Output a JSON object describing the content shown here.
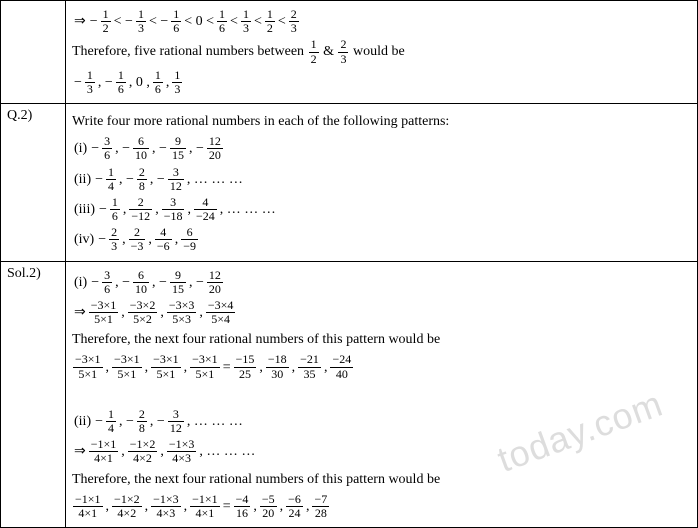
{
  "row1": {
    "label": "",
    "line1_parts": [
      "⇒",
      " − ",
      "1",
      "2",
      " < − ",
      "1",
      "3",
      " < − ",
      "1",
      "6",
      " < 0 < ",
      "1",
      "6",
      " < ",
      "1",
      "3",
      " < ",
      "1",
      "2",
      " < ",
      "2",
      "3"
    ],
    "line2_pre": "Therefore, five rational numbers between ",
    "line2_f1": {
      "n": "1",
      "d": "2"
    },
    "line2_amp": " & ",
    "line2_f2": {
      "n": "2",
      "d": "3"
    },
    "line2_post": " would be",
    "line3_parts": [
      "− ",
      "1",
      "3",
      " , − ",
      "1",
      "6",
      " , 0 , ",
      "1",
      "6",
      " , ",
      "1",
      "3"
    ]
  },
  "row2": {
    "label": "Q.2)",
    "intro": "Write four more rational numbers in each of the following patterns:",
    "i_label": "(i) ",
    "i": [
      {
        "n": "3",
        "d": "6"
      },
      {
        "n": "6",
        "d": "10"
      },
      {
        "n": "9",
        "d": "15"
      },
      {
        "n": "12",
        "d": "20"
      }
    ],
    "ii_label": "(ii) ",
    "ii": [
      {
        "n": "1",
        "d": "4"
      },
      {
        "n": "2",
        "d": "8"
      },
      {
        "n": "3",
        "d": "12"
      }
    ],
    "ii_dots": " , … … …",
    "iii_label": "(iii) ",
    "iii": [
      {
        "n": "1",
        "d": "6"
      },
      {
        "n": "2",
        "d": "−12"
      },
      {
        "n": "3",
        "d": "−18"
      },
      {
        "n": "4",
        "d": "−24"
      }
    ],
    "iii_dots": " , … … …",
    "iv_label": "(iv) ",
    "iv": [
      {
        "n": "2",
        "d": "3"
      },
      {
        "n": "2",
        "d": "−3"
      },
      {
        "n": "4",
        "d": "−6"
      },
      {
        "n": "6",
        "d": "−9"
      }
    ]
  },
  "row3": {
    "label": "Sol.2)",
    "i_label": "(i) ",
    "i_start": [
      {
        "n": "3",
        "d": "6"
      },
      {
        "n": "6",
        "d": "10"
      },
      {
        "n": "9",
        "d": "15"
      },
      {
        "n": "12",
        "d": "20"
      }
    ],
    "i_arrow": "⇒",
    "i_exp": [
      {
        "n": "−3×1",
        "d": "5×1"
      },
      {
        "n": "−3×2",
        "d": "5×2"
      },
      {
        "n": "−3×3",
        "d": "5×3"
      },
      {
        "n": "−3×4",
        "d": "5×4"
      }
    ],
    "i_text": "Therefore, the next four rational numbers of this pattern would be",
    "i_next": [
      {
        "n": "−3×1",
        "d": "5×1"
      },
      {
        "n": "−3×1",
        "d": "5×1"
      },
      {
        "n": "−3×1",
        "d": "5×1"
      },
      {
        "n": "−3×1",
        "d": "5×1"
      }
    ],
    "i_eq": " = ",
    "i_result": [
      {
        "n": "−15",
        "d": "25"
      },
      {
        "n": "−18",
        "d": "30"
      },
      {
        "n": "−21",
        "d": "35"
      },
      {
        "n": "−24",
        "d": "40"
      }
    ],
    "ii_label": "(ii) ",
    "ii_start": [
      {
        "n": "1",
        "d": "4"
      },
      {
        "n": "2",
        "d": "8"
      },
      {
        "n": "3",
        "d": "12"
      }
    ],
    "ii_dots": " , … … …",
    "ii_arrow": "⇒",
    "ii_exp": [
      {
        "n": "−1×1",
        "d": "4×1"
      },
      {
        "n": "−1×2",
        "d": "4×2"
      },
      {
        "n": "−1×3",
        "d": "4×3"
      }
    ],
    "ii_exp_dots": " , … … …",
    "ii_text": "Therefore, the next four rational numbers of this pattern would be",
    "ii_next": [
      {
        "n": "−1×1",
        "d": "4×1"
      },
      {
        "n": "−1×2",
        "d": "4×2"
      },
      {
        "n": "−1×3",
        "d": "4×3"
      },
      {
        "n": "−1×1",
        "d": "4×1"
      }
    ],
    "ii_eq": " = ",
    "ii_result": [
      {
        "n": "−4",
        "d": "16"
      },
      {
        "n": "−5",
        "d": "20"
      },
      {
        "n": "−6",
        "d": "24"
      },
      {
        "n": "−7",
        "d": "28"
      }
    ]
  },
  "watermark": "today.com"
}
